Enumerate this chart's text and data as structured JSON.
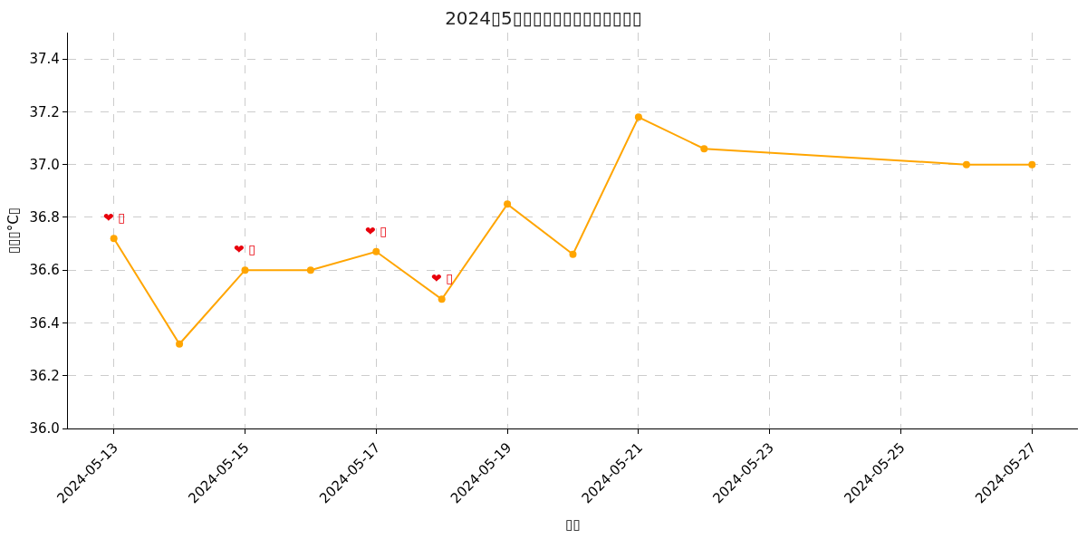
{
  "chart_data": {
    "type": "line",
    "title": "2024▯5▯▯▯▯▯▯▯▯▯▯▯▯▯",
    "xlabel": "▯▯",
    "ylabel": "▯▯▯°C▯",
    "x": [
      "2024-05-13",
      "2024-05-14",
      "2024-05-15",
      "2024-05-16",
      "2024-05-17",
      "2024-05-18",
      "2024-05-19",
      "2024-05-20",
      "2024-05-21",
      "2024-05-22",
      "2024-05-26",
      "2024-05-27"
    ],
    "series": [
      {
        "color": "#ffa500",
        "values": [
          36.72,
          36.32,
          36.6,
          36.6,
          36.67,
          36.49,
          36.85,
          36.66,
          37.18,
          37.06,
          37.0,
          37.0
        ]
      }
    ],
    "xlim": [
      "2024-05-12T07:12",
      "2024-05-27T16:48"
    ],
    "xticks": [
      "2024-05-13",
      "2024-05-15",
      "2024-05-17",
      "2024-05-19",
      "2024-05-21",
      "2024-05-23",
      "2024-05-25",
      "2024-05-27"
    ],
    "ylim": [
      36.0,
      37.5
    ],
    "yticks": [
      {
        "value": 36.0,
        "label": "36.0"
      },
      36.2,
      36.4,
      36.6,
      36.8,
      {
        "value": 37.0,
        "label": "37.0"
      },
      37.2,
      37.4
    ],
    "annotations": [
      {
        "text": "❤ ▯",
        "x": "2024-05-13",
        "y": 36.72
      },
      {
        "text": "❤ ▯",
        "x": "2024-05-15",
        "y": 36.6
      },
      {
        "text": "❤ ▯",
        "x": "2024-05-17",
        "y": 36.67
      },
      {
        "text": "❤ ▯",
        "x": "2024-05-18",
        "y": 36.49
      }
    ],
    "grid": true,
    "marker": "circle",
    "line_style": "solid"
  }
}
